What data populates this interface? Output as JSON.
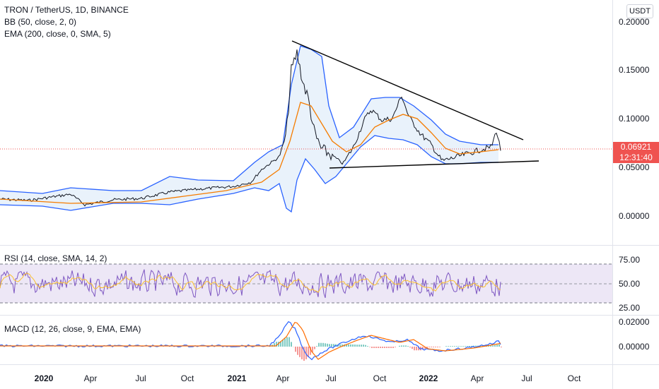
{
  "legend": {
    "symbol": "TRON / TetherUS, 1D, BINANCE",
    "bb": "BB (50, close, 2, 0)",
    "ema": "EMA (200, close, 0, SMA, 5)"
  },
  "rsi_legend": "RSI (14, close, SMA, 14, 2)",
  "macd_legend": "MACD (12, 26, close, 9, EMA, EMA)",
  "currency_button": "USDT",
  "price_axis": [
    "0.20000",
    "0.15000",
    "0.10000",
    "0.05000",
    "0.00000"
  ],
  "rsi_axis": [
    "75.00",
    "50.00",
    "25.00"
  ],
  "macd_axis": [
    "0.02000",
    "0.00000"
  ],
  "last_price": "0.06921",
  "countdown": "12:31:40",
  "time_axis": [
    {
      "label": "2020",
      "bold": true
    },
    {
      "label": "Apr",
      "bold": false
    },
    {
      "label": "Jul",
      "bold": false
    },
    {
      "label": "Oct",
      "bold": false
    },
    {
      "label": "2021",
      "bold": true
    },
    {
      "label": "Apr",
      "bold": false
    },
    {
      "label": "Jul",
      "bold": false
    },
    {
      "label": "Oct",
      "bold": false
    },
    {
      "label": "2022",
      "bold": true
    },
    {
      "label": "Apr",
      "bold": false
    },
    {
      "label": "Jul",
      "bold": false
    },
    {
      "label": "Oct",
      "bold": false
    }
  ],
  "colors": {
    "price": "#131722",
    "bb": "#2962ff",
    "bb_fill": "#e3effa",
    "ema": "#f57c00",
    "rsi": "#7e57c2",
    "rsi_ma": "#fbc02d",
    "rsi_band": "#ede7f6",
    "macd": "#2962ff",
    "signal": "#ff6d00",
    "hist_pos": "#26a69a",
    "hist_neg": "#ef5350",
    "last_price": "#ef5350"
  }
}
